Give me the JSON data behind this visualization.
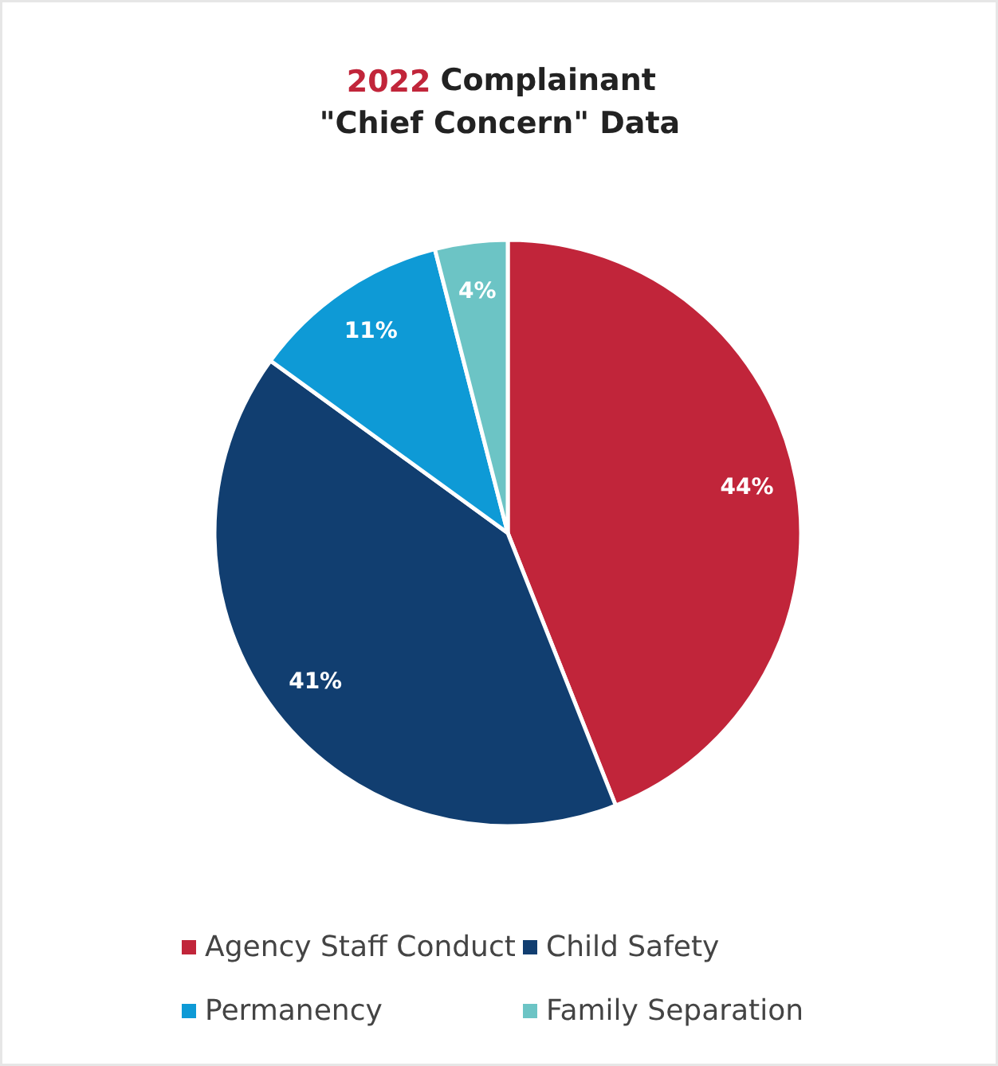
{
  "chart_data": {
    "type": "pie",
    "title": "2022 Complainant\n\"Chief Concern\" Data",
    "categories": [
      "Agency Staff Conduct",
      "Child Safety",
      "Permanency",
      "Family Separation"
    ],
    "values": [
      44,
      41,
      11,
      4
    ],
    "colors": [
      "#c1253a",
      "#113e70",
      "#0e9ad6",
      "#6cc4c5"
    ],
    "value_labels": [
      "44%",
      "41%",
      "11%",
      "4%"
    ],
    "legend": "bottom"
  }
}
